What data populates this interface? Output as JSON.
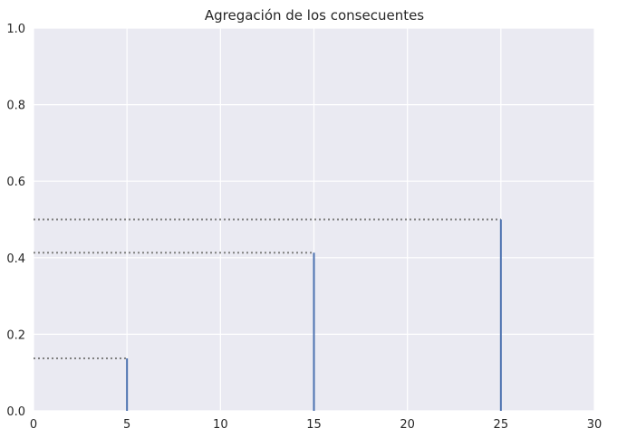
{
  "chart_data": {
    "type": "stem",
    "title": "Agregación de los consecuentes",
    "xlabel": "",
    "ylabel": "",
    "xlim": [
      0,
      30
    ],
    "ylim": [
      0,
      1.0
    ],
    "x_ticks": [
      "0",
      "5",
      "10",
      "15",
      "20",
      "25",
      "30"
    ],
    "y_ticks": [
      "0.0",
      "0.2",
      "0.4",
      "0.6",
      "0.8",
      "1.0"
    ],
    "grid": true,
    "stems": [
      {
        "x": 5,
        "y": 0.137
      },
      {
        "x": 15,
        "y": 0.413
      },
      {
        "x": 25,
        "y": 0.5
      }
    ],
    "reference_lines": "dotted horizontal lines from x=0 to each stem top",
    "colors": {
      "background": "#eaeaf2",
      "grid": "#ffffff",
      "stem": "#4c72b0",
      "reference": "#808080"
    }
  }
}
